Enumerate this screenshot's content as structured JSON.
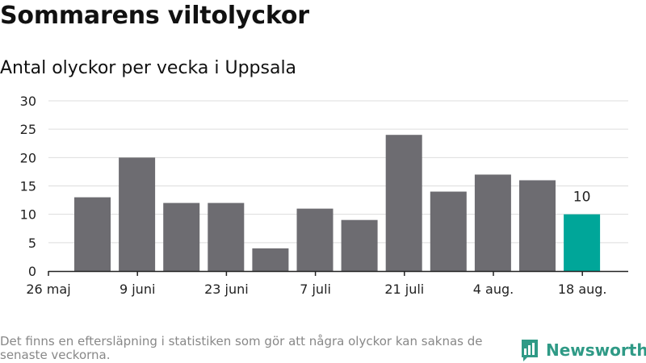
{
  "title": "Sommarens viltolyckor",
  "subtitle": "Antal olyckor per vecka i Uppsala",
  "footnote": "Det finns en eftersläpning i statistiken som gör att några olyckor kan saknas de senaste veckorna.",
  "brand": {
    "name": "Newsworthy",
    "icon": "newsworthy-logo-icon",
    "color": "#2f9a86"
  },
  "colors": {
    "bar": "#6d6c71",
    "highlight": "#00a699",
    "grid": "#dddddd",
    "axis": "#222222"
  },
  "chart_data": {
    "type": "bar",
    "x_tick_labels": [
      "26 maj",
      "9 juni",
      "23 juni",
      "7 juli",
      "21 juli",
      "4 aug.",
      "18 aug."
    ],
    "y_ticks": [
      0,
      5,
      10,
      15,
      20,
      25,
      30
    ],
    "ylim": [
      0,
      30
    ],
    "values": [
      13,
      20,
      12,
      12,
      4,
      11,
      9,
      24,
      14,
      17,
      16,
      10
    ],
    "highlight_index": 11,
    "data_labels": [
      {
        "index": 11,
        "text": "10"
      }
    ],
    "grid": true,
    "xlabel": "",
    "ylabel": ""
  }
}
